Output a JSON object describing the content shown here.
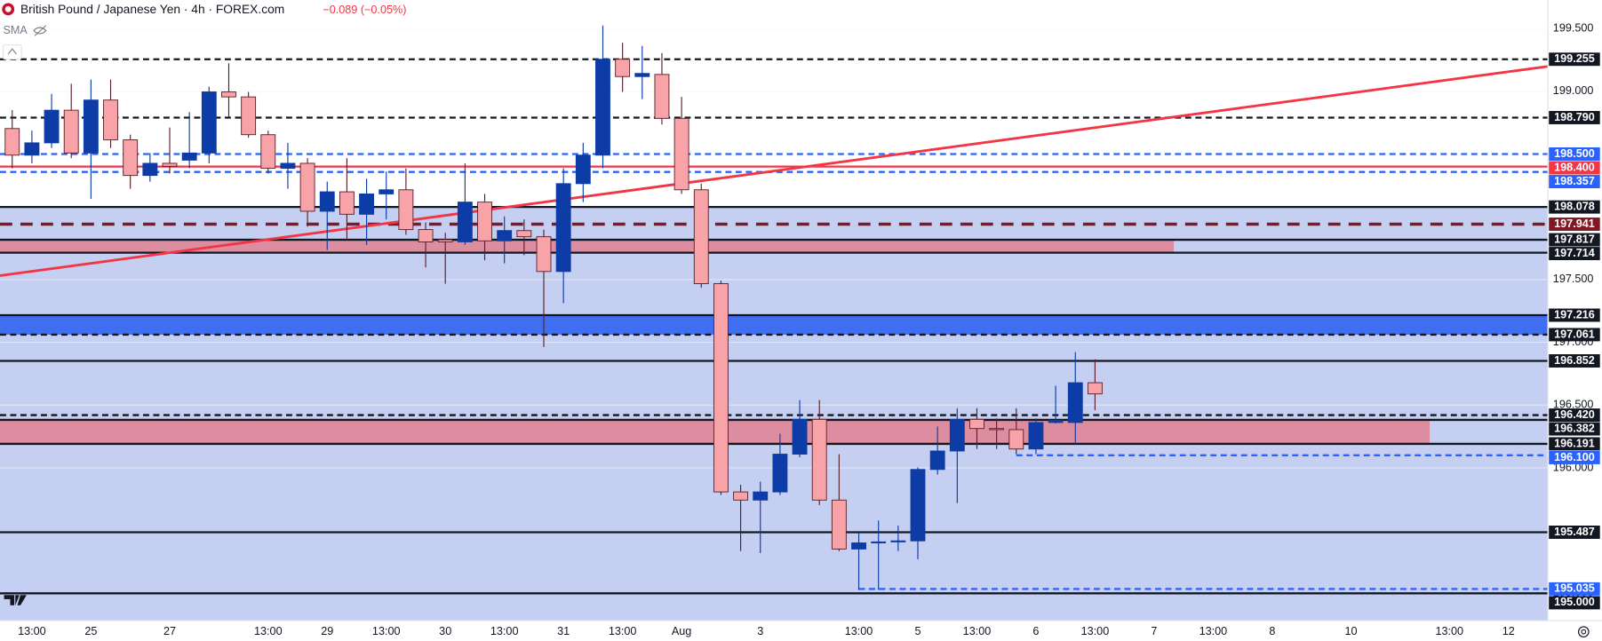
{
  "chart_data": {
    "type": "candlestick",
    "title": "British Pound / Japanese Yen · 4h · FOREX.com",
    "change": "−0.089 (−0.05%)",
    "change_color": "#f23645",
    "indicator": "SMA",
    "up_color": "#0d3ca6",
    "down_color": "#f7a3a8",
    "ylim": [
      194.783,
      199.727
    ],
    "xlim": [
      -0.62,
      78.0
    ],
    "grid": true,
    "yticks": [
      {
        "value": 199.5,
        "label": "199.500"
      },
      {
        "value": 199.0,
        "label": "199.000"
      },
      {
        "value": 197.5,
        "label": "197.500"
      },
      {
        "value": 197.0,
        "label": "197.000"
      },
      {
        "value": 196.5,
        "label": "196.500"
      },
      {
        "value": 196.0,
        "label": "196.000"
      },
      {
        "value": 195.0,
        "label": "195.000"
      }
    ],
    "xticks": [
      {
        "value": 1,
        "label": "13:00"
      },
      {
        "value": 4,
        "label": "25"
      },
      {
        "value": 8,
        "label": "27"
      },
      {
        "value": 13,
        "label": "13:00"
      },
      {
        "value": 16,
        "label": "29"
      },
      {
        "value": 19,
        "label": "13:00"
      },
      {
        "value": 22,
        "label": "30"
      },
      {
        "value": 25,
        "label": "13:00"
      },
      {
        "value": 28,
        "label": "31"
      },
      {
        "value": 31,
        "label": "13:00"
      },
      {
        "value": 34,
        "label": "Aug"
      },
      {
        "value": 38,
        "label": "3"
      },
      {
        "value": 43,
        "label": "13:00"
      },
      {
        "value": 46,
        "label": "5"
      },
      {
        "value": 49,
        "label": "13:00"
      },
      {
        "value": 52,
        "label": "6"
      },
      {
        "value": 55,
        "label": "13:00"
      },
      {
        "value": 58,
        "label": "7"
      },
      {
        "value": 61,
        "label": "13:00"
      },
      {
        "value": 64,
        "label": "8"
      },
      {
        "value": 68,
        "label": "10"
      },
      {
        "value": 73,
        "label": "13:00"
      },
      {
        "value": 76,
        "label": "12"
      }
    ],
    "candles": {
      "open": [
        198.703,
        198.491,
        198.589,
        198.849,
        198.508,
        198.93,
        198.613,
        198.329,
        198.426,
        198.451,
        198.508,
        198.995,
        198.955,
        198.654,
        198.386,
        198.426,
        198.044,
        198.199,
        198.02,
        198.182,
        198.215,
        197.898,
        197.817,
        197.8,
        198.117,
        197.808,
        197.89,
        197.841,
        197.564,
        198.264,
        198.491,
        199.255,
        199.117,
        199.134,
        198.784,
        198.215,
        197.467,
        195.808,
        195.743,
        195.808,
        196.109,
        196.386,
        195.743,
        195.353,
        195.402,
        195.41,
        195.418,
        195.987,
        196.134,
        196.386,
        196.313,
        196.304,
        196.15,
        196.361,
        196.361,
        196.678
      ],
      "high": [
        198.849,
        198.686,
        198.979,
        199.06,
        199.093,
        199.093,
        198.654,
        198.508,
        198.711,
        198.833,
        199.036,
        199.223,
        198.995,
        198.686,
        198.589,
        198.467,
        198.28,
        198.467,
        198.304,
        198.361,
        198.386,
        197.955,
        197.873,
        198.426,
        198.182,
        198.003,
        197.979,
        197.898,
        198.386,
        198.589,
        199.524,
        199.386,
        199.361,
        199.304,
        198.955,
        198.264,
        197.491,
        195.865,
        195.89,
        196.272,
        196.54,
        196.54,
        196.109,
        195.483,
        195.58,
        195.54,
        196.003,
        196.329,
        196.475,
        196.475,
        196.394,
        196.475,
        196.394,
        196.654,
        196.922,
        196.865
      ],
      "low": [
        198.386,
        198.426,
        198.548,
        198.467,
        198.142,
        198.548,
        198.223,
        198.28,
        198.345,
        198.386,
        198.426,
        198.792,
        198.63,
        198.345,
        198.223,
        197.922,
        197.735,
        197.817,
        197.776,
        197.979,
        197.857,
        197.597,
        197.467,
        197.776,
        197.654,
        197.629,
        197.694,
        196.963,
        197.312,
        198.117,
        198.386,
        198.995,
        198.938,
        198.735,
        198.182,
        197.434,
        195.784,
        195.337,
        195.321,
        195.784,
        196.085,
        195.703,
        195.337,
        195.028,
        195.028,
        195.337,
        195.272,
        195.946,
        195.719,
        196.15,
        196.15,
        196.109,
        196.109,
        196.353,
        196.19,
        196.459
      ],
      "close": [
        198.491,
        198.589,
        198.849,
        198.508,
        198.93,
        198.613,
        198.329,
        198.426,
        198.402,
        198.508,
        198.995,
        198.955,
        198.654,
        198.386,
        198.426,
        198.044,
        198.199,
        198.02,
        198.182,
        198.215,
        197.898,
        197.8,
        197.8,
        198.117,
        197.808,
        197.89,
        197.841,
        197.564,
        198.264,
        198.491,
        199.255,
        199.117,
        199.142,
        198.784,
        198.215,
        197.467,
        195.808,
        195.743,
        195.808,
        196.109,
        196.386,
        195.743,
        195.353,
        195.402,
        195.41,
        195.418,
        195.987,
        196.134,
        196.386,
        196.313,
        196.304,
        196.15,
        196.361,
        196.378,
        196.678,
        196.589
      ]
    },
    "zones": [
      {
        "top": 198.078,
        "bottom": 194.783,
        "color": "#c5cff1"
      },
      {
        "top": 197.817,
        "bottom": 197.714,
        "end": 59,
        "color": "#dc8ea0"
      },
      {
        "top": 197.216,
        "bottom": 197.061,
        "color": "#3f6ff0"
      },
      {
        "top": 196.382,
        "bottom": 196.191,
        "end": 72,
        "color": "#dc8ea0"
      }
    ],
    "trendline": {
      "start": 197.531,
      "end": 199.198,
      "color": "#f23645"
    },
    "levels": [
      {
        "value": 199.255,
        "label": "199.255",
        "color": "#131722",
        "style": "dashed"
      },
      {
        "value": 198.79,
        "label": "198.790",
        "color": "#131722",
        "style": "dashed"
      },
      {
        "value": 198.5,
        "label": "198.500",
        "color": "#2962ff",
        "style": "dashed"
      },
      {
        "value": 198.4,
        "label": "198.400",
        "color": "#f23645",
        "style": "solid"
      },
      {
        "value": 198.357,
        "label": "198.357",
        "color": "#2962ff",
        "style": "dashed"
      },
      {
        "value": 198.078,
        "label": "198.078",
        "color": "#131722",
        "style": "solid"
      },
      {
        "value": 197.941,
        "label": "197.941",
        "color": "#801922",
        "style": "dashed"
      },
      {
        "value": 197.817,
        "label": "197.817",
        "color": "#131722",
        "style": "solid"
      },
      {
        "value": 197.714,
        "label": "197.714",
        "color": "#131722",
        "style": "solid"
      },
      {
        "value": 197.216,
        "label": "197.216",
        "color": "#131722",
        "style": "solid"
      },
      {
        "value": 197.061,
        "label": "197.061",
        "color": "#131722",
        "style": "dashed"
      },
      {
        "value": 196.852,
        "label": "196.852",
        "color": "#131722",
        "style": "solid"
      },
      {
        "value": 196.42,
        "label": "196.420",
        "color": "#131722",
        "style": "dashed"
      },
      {
        "value": 196.382,
        "label": "196.382",
        "color": "#131722",
        "style": "solid"
      },
      {
        "value": 196.191,
        "label": "196.191",
        "color": "#131722",
        "style": "solid"
      },
      {
        "value": 196.1,
        "label": "196.100",
        "color": "#2962ff",
        "style": "dashed",
        "start": 51
      },
      {
        "value": 195.487,
        "label": "195.487",
        "color": "#131722",
        "style": "solid"
      },
      {
        "value": 195.035,
        "label": "195.035",
        "color": "#2962ff",
        "style": "dashed",
        "start": 43
      },
      {
        "value": 195.0,
        "label": "195.000",
        "color": "#131722",
        "style": "solid"
      }
    ]
  }
}
